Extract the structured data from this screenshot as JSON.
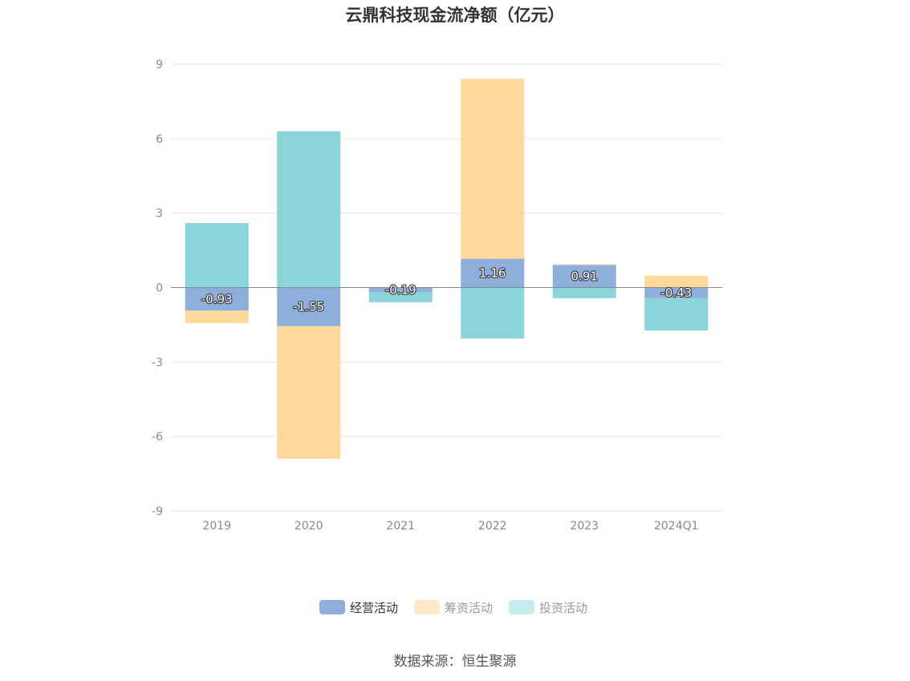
{
  "chart_data": {
    "type": "bar",
    "stacked": true,
    "title": "云鼎科技现金流净额（亿元）",
    "categories": [
      "2019",
      "2020",
      "2021",
      "2022",
      "2023",
      "2024Q1"
    ],
    "ylim": [
      -9,
      9
    ],
    "yticks": [
      "9",
      "6",
      "3",
      "0",
      "-3",
      "-6",
      "-9"
    ],
    "ytick_values": [
      9,
      6,
      3,
      0,
      -3,
      -6,
      -9
    ],
    "grid": true,
    "legend_position": "bottom",
    "series": [
      {
        "name": "经营活动",
        "color": "#8eaedc",
        "values": [
          -0.93,
          -1.55,
          -0.19,
          1.16,
          0.91,
          -0.43
        ],
        "labels": [
          "-0.93",
          "-1.55",
          "-0.19",
          "1.16",
          "0.91",
          "-0.43"
        ]
      },
      {
        "name": "筹资活动",
        "color": "#fed99b",
        "values": [
          -0.5,
          -5.35,
          0.0,
          7.25,
          0.03,
          0.48
        ]
      },
      {
        "name": "投资活动",
        "color": "#89d5da",
        "values": [
          2.6,
          6.3,
          -0.4,
          -2.05,
          -0.43,
          -1.3
        ]
      }
    ]
  },
  "legend": {
    "items": [
      {
        "label": "经营活动",
        "color": "#8eaedc",
        "text_color": "#333333"
      },
      {
        "label": "筹资活动",
        "color": "#ffe9c8",
        "text_color": "#999999"
      },
      {
        "label": "投资活动",
        "color": "#c5ebee",
        "text_color": "#999999"
      }
    ]
  },
  "source": "数据来源：恒生聚源"
}
